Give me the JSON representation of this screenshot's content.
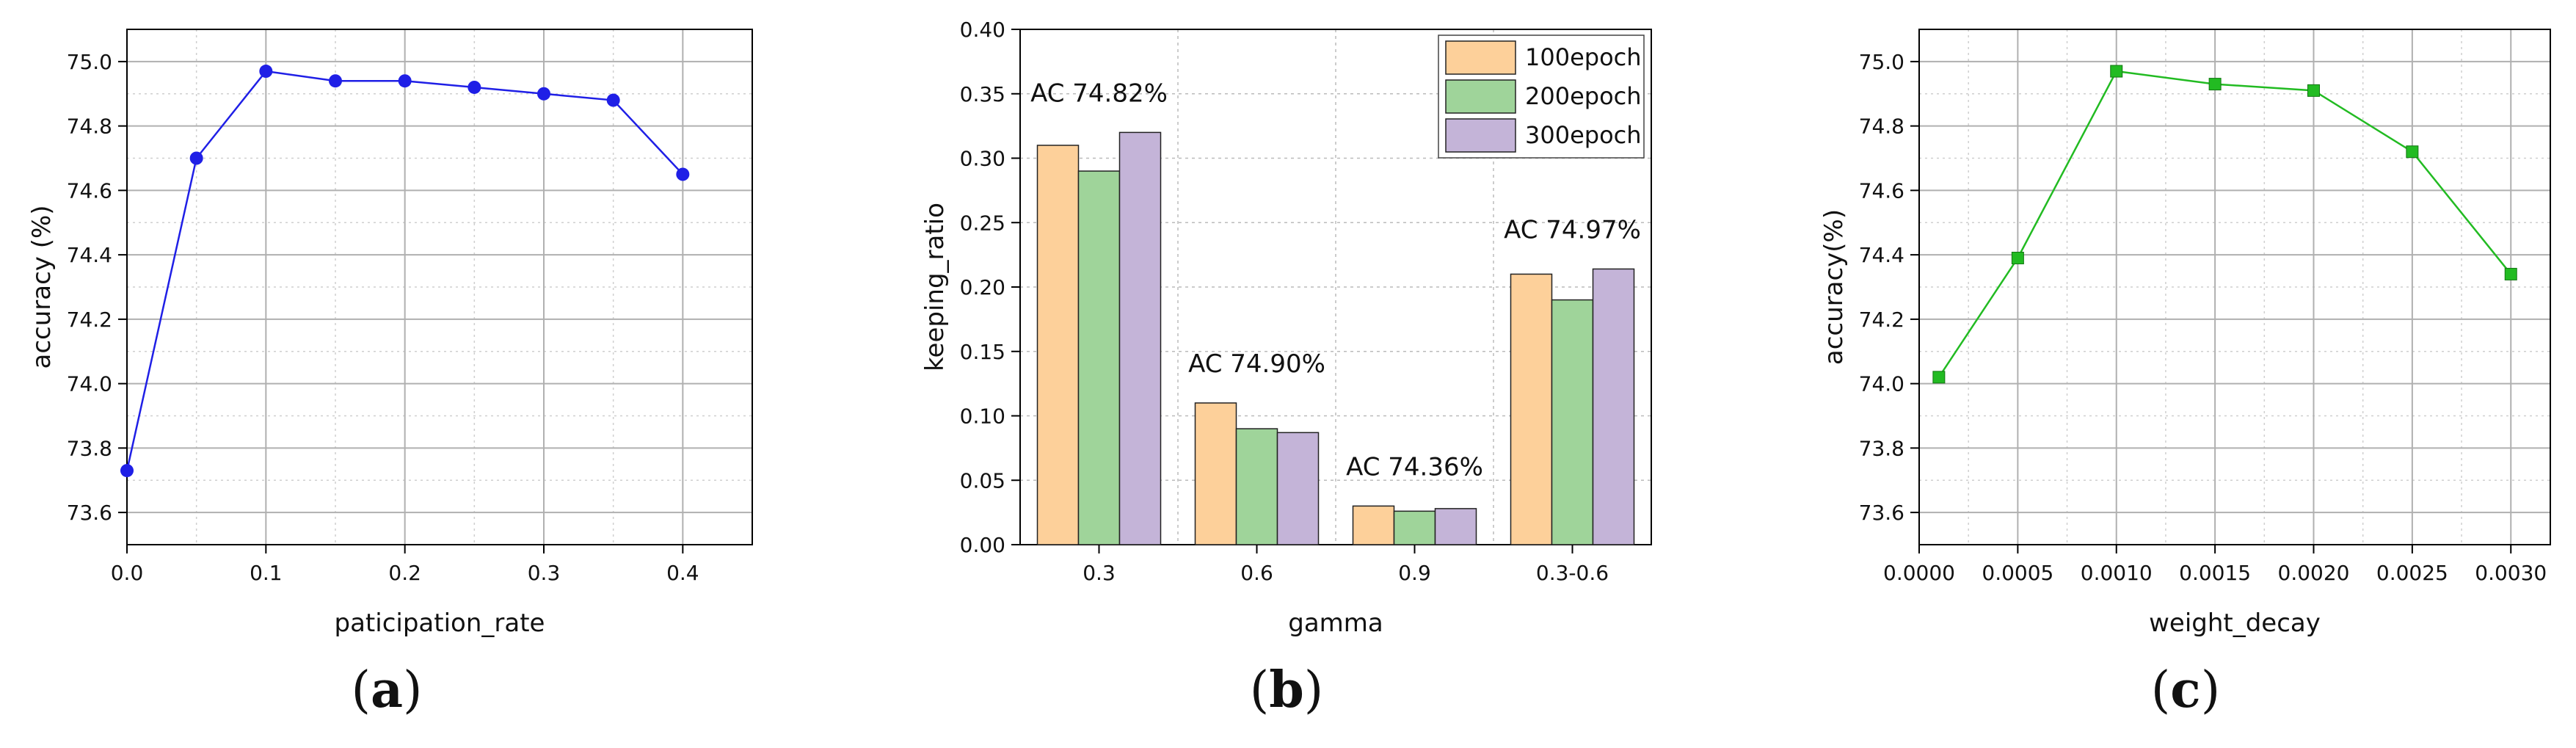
{
  "figure": {
    "captions": [
      {
        "open": "(",
        "letter": "a",
        "close": ")"
      },
      {
        "open": "(",
        "letter": "b",
        "close": ")"
      },
      {
        "open": "(",
        "letter": "c",
        "close": ")"
      }
    ]
  },
  "chart_data": [
    {
      "type": "line",
      "xlabel": "paticipation_rate",
      "ylabel": "accuracy (%)",
      "xlim": [
        0.0,
        0.45
      ],
      "ylim": [
        73.5,
        75.1
      ],
      "xticks": [
        0.0,
        0.1,
        0.2,
        0.3,
        0.4
      ],
      "xtick_labels": [
        "0.0",
        "0.1",
        "0.2",
        "0.3",
        "0.4"
      ],
      "yticks": [
        73.6,
        73.8,
        74.0,
        74.2,
        74.4,
        74.6,
        74.8,
        75.0
      ],
      "ytick_labels": [
        "73.6",
        "73.8",
        "74.0",
        "74.2",
        "74.4",
        "74.6",
        "74.8",
        "75.0"
      ],
      "grid": true,
      "series": [
        {
          "color": "#1f1fe6",
          "marker": "circle",
          "x": [
            0.0,
            0.05,
            0.1,
            0.15,
            0.2,
            0.25,
            0.3,
            0.35,
            0.4
          ],
          "y": [
            73.73,
            74.7,
            74.97,
            74.94,
            74.94,
            74.92,
            74.9,
            74.88,
            74.65
          ]
        }
      ]
    },
    {
      "type": "bar",
      "xlabel": "gamma",
      "ylabel": "keeping_ratio",
      "categories": [
        "0.3",
        "0.6",
        "0.9",
        "0.3-0.6"
      ],
      "ylim": [
        0,
        0.4
      ],
      "yticks": [
        0.0,
        0.05,
        0.1,
        0.15,
        0.2,
        0.25,
        0.3,
        0.35,
        0.4
      ],
      "ytick_labels": [
        "0.00",
        "0.05",
        "0.10",
        "0.15",
        "0.20",
        "0.25",
        "0.30",
        "0.35",
        "0.40"
      ],
      "grid": true,
      "legend_position": "top-right",
      "series": [
        {
          "name": "100epoch",
          "color": "#fdd09a",
          "values": [
            0.31,
            0.11,
            0.03,
            0.21
          ]
        },
        {
          "name": "200epoch",
          "color": "#9fd49a",
          "values": [
            0.29,
            0.09,
            0.026,
            0.19
          ]
        },
        {
          "name": "300epoch",
          "color": "#c4b4d8",
          "values": [
            0.32,
            0.087,
            0.028,
            0.214
          ]
        }
      ],
      "annotations": [
        "AC 74.82%",
        "AC 74.90%",
        "AC 74.36%",
        "AC 74.97%"
      ]
    },
    {
      "type": "line",
      "xlabel": "weight_decay",
      "ylabel": "accuracy(%)",
      "xlim": [
        0.0,
        0.0032
      ],
      "ylim": [
        73.5,
        75.1
      ],
      "xticks": [
        0.0,
        0.0005,
        0.001,
        0.0015,
        0.002,
        0.0025,
        0.003
      ],
      "xtick_labels": [
        "0.0000",
        "0.0005",
        "0.0010",
        "0.0015",
        "0.0020",
        "0.0025",
        "0.0030"
      ],
      "yticks": [
        73.6,
        73.8,
        74.0,
        74.2,
        74.4,
        74.6,
        74.8,
        75.0
      ],
      "ytick_labels": [
        "73.6",
        "73.8",
        "74.0",
        "74.2",
        "74.4",
        "74.6",
        "74.8",
        "75.0"
      ],
      "grid": true,
      "series": [
        {
          "color": "#22bb22",
          "marker": "square",
          "x": [
            0.0001,
            0.0005,
            0.001,
            0.0015,
            0.002,
            0.0025,
            0.003
          ],
          "y": [
            74.02,
            74.39,
            74.97,
            74.93,
            74.91,
            74.72,
            74.34
          ]
        }
      ]
    }
  ]
}
